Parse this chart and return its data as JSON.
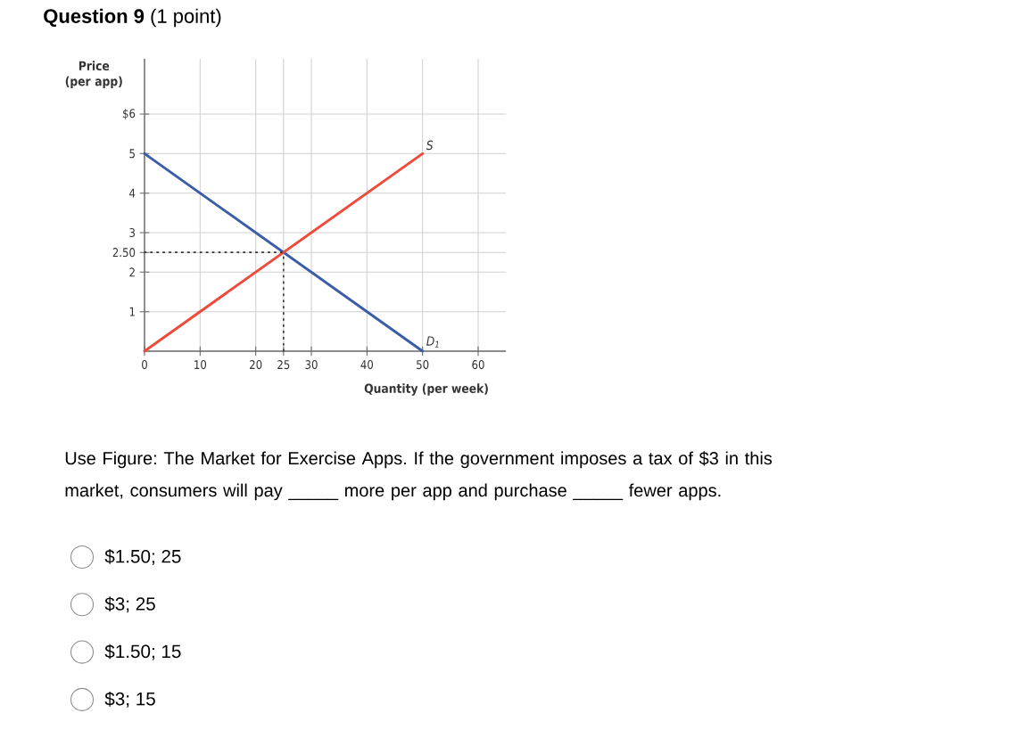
{
  "chart_data": {
    "type": "line",
    "title": "**Question 9** (1 point)",
    "xlabel": "Quantity (per week)",
    "ylabel": "Price (per app)",
    "xlim": [
      0,
      65
    ],
    "ylim": [
      0,
      7.4
    ],
    "xticks": [
      0,
      10,
      20,
      25,
      30,
      40,
      50,
      60
    ],
    "yticks": [
      1,
      2,
      {
        "value": 2.5,
        "label": "2.50"
      },
      3,
      4,
      5,
      {
        "value": 6,
        "label": "$6"
      }
    ],
    "grid": true,
    "series": [
      {
        "name": "D$_{1}$",
        "color": "#3b5ca8",
        "x": [
          0,
          50
        ],
        "values": [
          5,
          0
        ],
        "line_style": "solid"
      },
      {
        "name": "S",
        "color": "#ee4b3b",
        "x": [
          0,
          50
        ],
        "values": [
          0,
          5
        ],
        "line_style": "solid"
      },
      {
        "color": "#333333",
        "x": [
          0,
          25
        ],
        "values": [
          2.5,
          2.5
        ],
        "line_style": "dotted"
      },
      {
        "color": "#333333",
        "x": [
          25,
          25
        ],
        "values": [
          0,
          2.5
        ],
        "line_style": "dotted"
      }
    ],
    "annotations": [
      "Use Figure: The Market for Exercise Apps. If the government imposes a tax of $3 in this market, consumers will pay _____ more per app and purchase _____ fewer apps.",
      "$1.50; 25",
      "$3; 25",
      "$1.50; 15",
      "$3; 15"
    ]
  }
}
